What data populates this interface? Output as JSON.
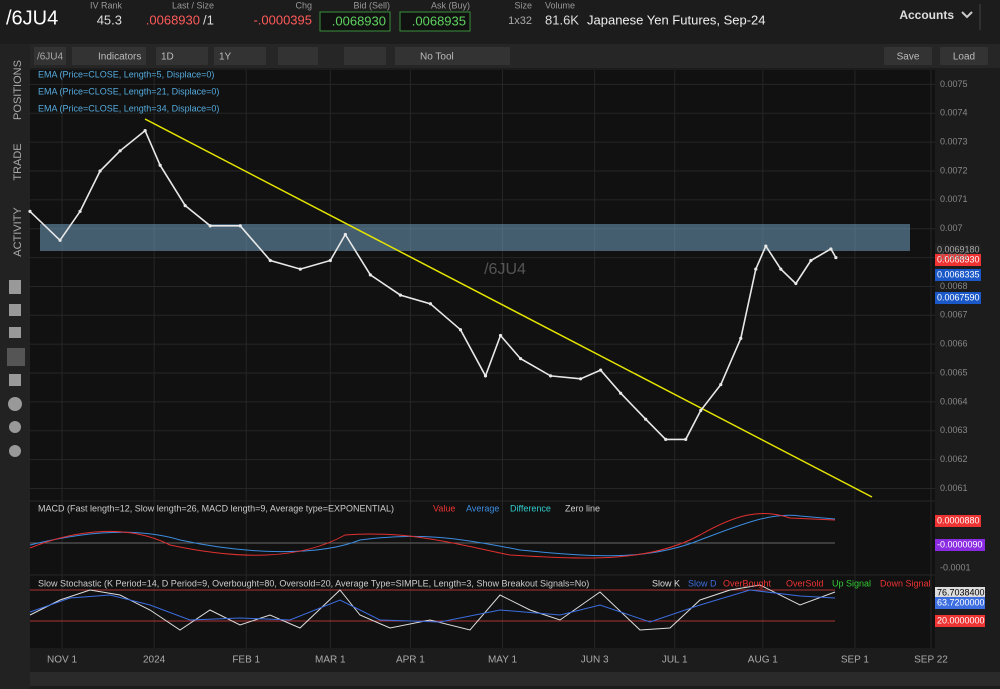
{
  "header": {
    "symbol": "/6JU4",
    "iv_rank_label": "IV Rank",
    "iv_rank": "45.3",
    "last_label": "Last / Size",
    "last": ".0068930",
    "size_part": "/1",
    "chg_label": "Chg",
    "chg": "-.0000395",
    "bid_label": "Bid (Sell)",
    "bid": ".0068930",
    "ask_label": "Ask (Buy)",
    "ask": ".0068935",
    "size_label": "Size",
    "size": "1x32",
    "volume_label": "Volume",
    "volume": "81.6K",
    "description": "Japanese Yen Futures, Sep-24",
    "accounts": "Accounts"
  },
  "toolbar": {
    "symbol": "/6JU4",
    "indicators": "Indicators",
    "interval": "1D",
    "range": "1Y",
    "tool": "No Tool",
    "save": "Save",
    "load": "Load"
  },
  "side_tabs": [
    "POSITIONS",
    "TRADE",
    "ACTIVITY"
  ],
  "studies": [
    "EMA (Price=CLOSE, Length=5, Displace=0)",
    "EMA (Price=CLOSE, Length=21, Displace=0)",
    "EMA (Price=CLOSE, Length=34, Displace=0)"
  ],
  "watermark": "/6JU4",
  "price_labels": [
    "0.0069180",
    "0.0068930",
    "0.0068335",
    "0.0067590"
  ],
  "macd": {
    "title": "MACD (Fast length=12, Slow length=26, MACD length=9, Average type=EXPONENTIAL)",
    "legend": [
      "Value",
      "Average",
      "Difference",
      "Zero line"
    ],
    "axis_labels": [
      "0.0000880",
      "-0.0000090",
      "-0.0001"
    ]
  },
  "stochastic": {
    "title": "Slow Stochastic (K Period=14, D Period=9, Overbought=80, Oversold=20, Average Type=SIMPLE, Length=3, Show Breakout Signals=No)",
    "legend": [
      "Slow K",
      "Slow D",
      "OverBought",
      "OverSold",
      "Up Signal",
      "Down Signal"
    ],
    "axis_labels": [
      "76.7038400",
      "63.7200000",
      "20.0000000"
    ]
  },
  "chart_data": {
    "type": "line",
    "color": "#e8e8e8",
    "x": [
      -8,
      -0.5,
      4.5,
      9.5,
      14.5,
      20.75,
      24.5,
      30.75,
      37,
      44.5,
      52,
      59.5,
      67,
      70.75,
      77,
      84.5,
      92,
      99.5,
      105.75,
      109.5,
      114.5,
      122,
      129.5,
      134.5,
      139.5,
      145.75,
      150.75,
      155.75,
      159.5,
      164.5,
      169.5,
      173.25,
      175.75,
      179.5,
      183.25,
      187,
      192,
      193.25
    ],
    "values": [
      0.00706,
      0.00696,
      0.00706,
      0.0072,
      0.00727,
      0.00734,
      0.00722,
      0.00708,
      0.00701,
      0.00701,
      0.00689,
      0.00686,
      0.00689,
      0.00698,
      0.00684,
      0.00677,
      0.00674,
      0.00665,
      0.00649,
      0.00663,
      0.00655,
      0.00649,
      0.00648,
      0.00651,
      0.00643,
      0.00634,
      0.00627,
      0.00627,
      0.00637,
      0.00646,
      0.00662,
      0.00686,
      0.00694,
      0.00686,
      0.00681,
      0.00689,
      0.00693,
      0.0069
    ],
    "xlim": [
      -8,
      218
    ],
    "ylim": [
      0.00606,
      0.00755
    ],
    "yticks": [
      0.0075,
      0.0074,
      0.0073,
      0.0072,
      0.0071,
      0.007,
      0.0069,
      0.0068,
      0.0067,
      0.0066,
      0.0065,
      0.0064,
      0.0063,
      0.0062,
      0.0061
    ],
    "xticks": [
      {
        "value": 0,
        "label": "NOV 1"
      },
      {
        "value": 23,
        "label": "2024"
      },
      {
        "value": 46,
        "label": "FEB 1"
      },
      {
        "value": 67,
        "label": "MAR 1"
      },
      {
        "value": 87,
        "label": "APR 1"
      },
      {
        "value": 110,
        "label": "MAY 1"
      },
      {
        "value": 133,
        "label": "JUN 3"
      },
      {
        "value": 153,
        "label": "JUL 1"
      },
      {
        "value": 175,
        "label": "AUG 1"
      },
      {
        "value": 198,
        "label": "SEP 1"
      },
      {
        "value": 217,
        "label": "SEP 22"
      }
    ],
    "grid": true
  }
}
